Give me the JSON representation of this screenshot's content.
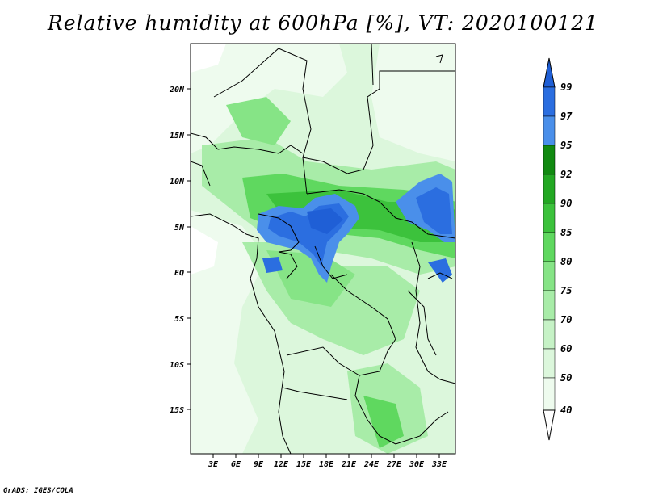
{
  "title": "Relative humidity at 600hPa [%], VT: 2020100121",
  "credit": "GrADS: IGES/COLA",
  "lat_ticks": [
    "20N",
    "15N",
    "10N",
    "5N",
    "EQ",
    "5S",
    "10S",
    "15S"
  ],
  "lon_ticks": [
    "3E",
    "6E",
    "9E",
    "12E",
    "15E",
    "18E",
    "21E",
    "24E",
    "27E",
    "30E",
    "33E"
  ],
  "colorbar": {
    "levels": [
      "99",
      "97",
      "95",
      "92",
      "90",
      "85",
      "80",
      "75",
      "70",
      "60",
      "50",
      "40"
    ],
    "colors": [
      "#1f5fd6",
      "#2b6ee0",
      "#4a8fea",
      "#118a11",
      "#23a823",
      "#3cc23c",
      "#5fd85f",
      "#86e486",
      "#a8eca8",
      "#c6f2c6",
      "#dcf7dc",
      "#eefbee",
      "#ffffff"
    ]
  },
  "map_colors": {
    "background": "#ffffff",
    "border": "#000000"
  }
}
